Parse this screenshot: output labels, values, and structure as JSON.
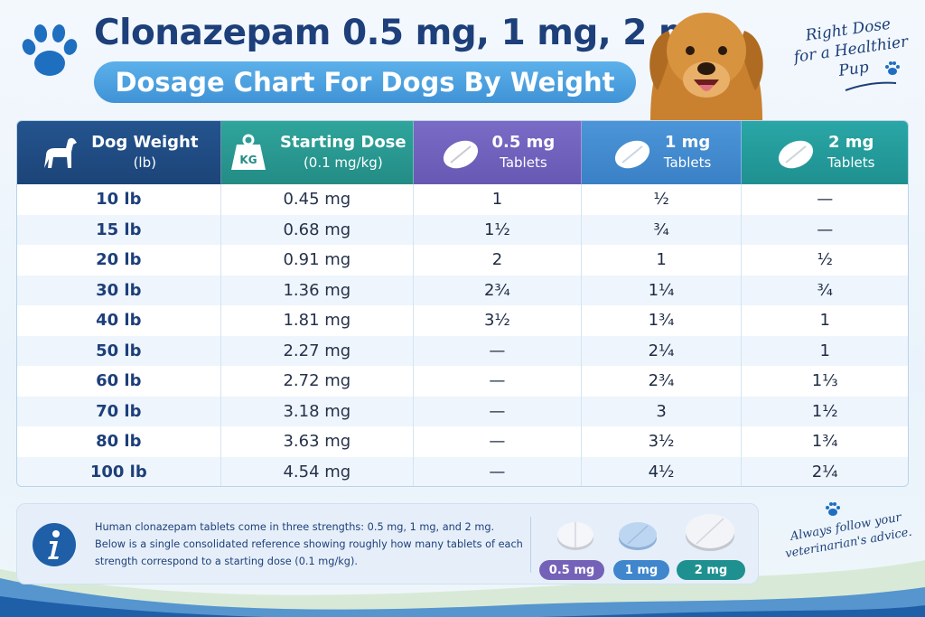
{
  "header": {
    "title": "Clonazepam 0.5 mg, 1 mg, 2 mg",
    "subtitle": "Dosage Chart For Dogs By Weight",
    "tagline": [
      "Right Dose",
      "for a Healthier",
      "Pup"
    ]
  },
  "colors": {
    "navy": "#1d3f7a",
    "teal": "#2fa59c",
    "purple": "#7a6bc6",
    "blue": "#4c95d8",
    "teal_dark": "#2aa6a6"
  },
  "icons": [
    "paw-icon",
    "dog-silhouette-icon",
    "kg-weight-icon",
    "tablet-icon",
    "info-icon"
  ],
  "table": {
    "headers": [
      {
        "line1": "Dog Weight",
        "line2": "(lb)"
      },
      {
        "line1": "Starting Dose",
        "line2": "(0.1 mg/kg)"
      },
      {
        "line1": "0.5 mg",
        "line2": "Tablets"
      },
      {
        "line1": "1 mg",
        "line2": "Tablets"
      },
      {
        "line1": "2 mg",
        "line2": "Tablets"
      }
    ],
    "rows": [
      [
        "10 lb",
        "0.45 mg",
        "1",
        "½",
        "—"
      ],
      [
        "15 lb",
        "0.68 mg",
        "1½",
        "¾",
        "—"
      ],
      [
        "20 lb",
        "0.91 mg",
        "2",
        "1",
        "½"
      ],
      [
        "30 lb",
        "1.36 mg",
        "2¾",
        "1¼",
        "¾"
      ],
      [
        "40 lb",
        "1.81 mg",
        "3½",
        "1¾",
        "1"
      ],
      [
        "50 lb",
        "2.27 mg",
        "—",
        "2¼",
        "1"
      ],
      [
        "60 lb",
        "2.72 mg",
        "—",
        "2¾",
        "1⅓"
      ],
      [
        "70 lb",
        "3.18 mg",
        "—",
        "3",
        "1½"
      ],
      [
        "80 lb",
        "3.63 mg",
        "—",
        "3½",
        "1¾"
      ],
      [
        "100 lb",
        "4.54 mg",
        "—",
        "4½",
        "2¼"
      ]
    ]
  },
  "info": {
    "line1": "Human clonazepam tablets come in three strengths: 0.5 mg, 1 mg, and 2 mg.",
    "line2": "Below is a single consolidated reference showing roughly how many tablets of each",
    "line3": "strength correspond to a starting dose (0.1 mg/kg)."
  },
  "tablet_labels": [
    "0.5 mg",
    "1 mg",
    "2 mg"
  ],
  "advice": [
    "Always follow your",
    "veterinarian's advice."
  ]
}
